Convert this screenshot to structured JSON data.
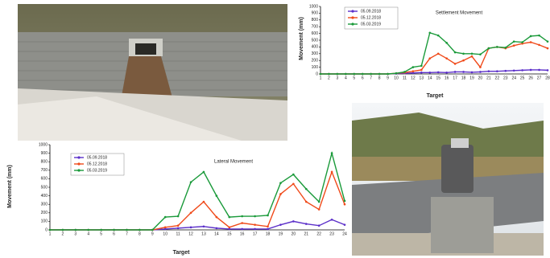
{
  "chart_data": [
    {
      "type": "line",
      "title": "Settlement Movement",
      "x_label": "Target",
      "y_label": "Movement (mm)",
      "categories": [
        "1",
        "2",
        "3",
        "4",
        "5",
        "6",
        "7",
        "8",
        "9",
        "10",
        "11",
        "12",
        "13",
        "14",
        "15",
        "16",
        "17",
        "18",
        "19",
        "20",
        "21",
        "22",
        "23",
        "24",
        "25",
        "26",
        "27",
        "28"
      ],
      "series": [
        {
          "name": "05.09.2018",
          "color": "#5b2fc9",
          "values": [
            0,
            0,
            0,
            0,
            0,
            0,
            0,
            0,
            0,
            5,
            10,
            15,
            20,
            20,
            25,
            20,
            30,
            30,
            25,
            30,
            40,
            40,
            45,
            50,
            55,
            60,
            60,
            55
          ]
        },
        {
          "name": "05.12.2018",
          "color": "#f04a1a",
          "values": [
            0,
            0,
            0,
            0,
            0,
            0,
            0,
            0,
            0,
            10,
            20,
            40,
            60,
            230,
            300,
            230,
            150,
            200,
            260,
            100,
            380,
            400,
            380,
            420,
            450,
            470,
            430,
            380
          ]
        },
        {
          "name": "05.03.2019",
          "color": "#1a9a3a",
          "values": [
            0,
            0,
            0,
            0,
            0,
            0,
            0,
            0,
            0,
            10,
            30,
            100,
            120,
            610,
            570,
            460,
            320,
            300,
            300,
            290,
            380,
            400,
            390,
            480,
            470,
            560,
            570,
            480
          ]
        }
      ],
      "ylim": [
        0,
        1000
      ],
      "yticks": [
        0,
        100,
        200,
        300,
        400,
        500,
        600,
        700,
        800,
        900,
        1000
      ]
    },
    {
      "type": "line",
      "title": "Lateral Movement",
      "x_label": "Target",
      "y_label": "Movement (mm)",
      "categories": [
        "1",
        "2",
        "3",
        "4",
        "5",
        "6",
        "7",
        "8",
        "9",
        "10",
        "11",
        "12",
        "13",
        "14",
        "15",
        "16",
        "17",
        "18",
        "19",
        "20",
        "21",
        "22",
        "23",
        "24"
      ],
      "series": [
        {
          "name": "05.09.2018",
          "color": "#5b2fc9",
          "values": [
            0,
            0,
            0,
            0,
            0,
            0,
            0,
            0,
            0,
            10,
            20,
            30,
            40,
            20,
            10,
            10,
            10,
            10,
            60,
            100,
            70,
            50,
            120,
            60
          ]
        },
        {
          "name": "05.12.2018",
          "color": "#f04a1a",
          "values": [
            0,
            0,
            0,
            0,
            0,
            0,
            0,
            0,
            0,
            30,
            50,
            200,
            330,
            150,
            30,
            80,
            60,
            40,
            420,
            540,
            330,
            240,
            680,
            300
          ]
        },
        {
          "name": "05.03.2019",
          "color": "#1a9a3a",
          "values": [
            0,
            0,
            0,
            0,
            0,
            0,
            0,
            0,
            0,
            150,
            160,
            560,
            680,
            400,
            150,
            160,
            160,
            170,
            550,
            650,
            480,
            330,
            900,
            340
          ]
        }
      ],
      "ylim": [
        0,
        1000
      ],
      "yticks": [
        0,
        100,
        200,
        300,
        400,
        500,
        600,
        700,
        800,
        900,
        1000
      ]
    }
  ]
}
